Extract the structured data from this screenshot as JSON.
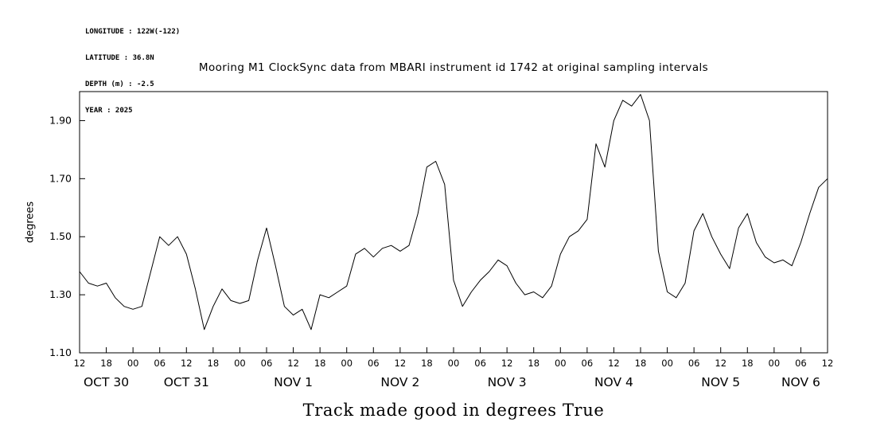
{
  "header_info": {
    "longitude": "LONGITUDE : 122W(-122)",
    "latitude": "LATITUDE : 36.8N",
    "depth": "DEPTH (m) : -2.5",
    "year": "YEAR : 2025"
  },
  "chart_data": {
    "type": "line",
    "title": "Mooring M1 ClockSync data from MBARI instrument id 1742 at original sampling intervals",
    "xlabel": "Track made good in degrees True",
    "ylabel": "degrees",
    "ylim": [
      1.1,
      2.0
    ],
    "ytick_labels": [
      "1.10",
      "1.30",
      "1.50",
      "1.70",
      "1.90"
    ],
    "x_start_label": "OCT 30 12:00",
    "x_end_label": "NOV 6 12:00",
    "x_tick_interval_hours": 6,
    "x_tick_labels": [
      "12",
      "18",
      "00",
      "06",
      "12",
      "18",
      "00",
      "06",
      "12",
      "18",
      "00",
      "06",
      "12",
      "18",
      "00",
      "06",
      "12",
      "18",
      "00",
      "06",
      "12",
      "18",
      "00",
      "06",
      "12",
      "18",
      "00",
      "06",
      "12"
    ],
    "date_labels": [
      {
        "label": "OCT 30",
        "center_hour": 6
      },
      {
        "label": "OCT 31",
        "center_hour": 24
      },
      {
        "label": "NOV 1",
        "center_hour": 48
      },
      {
        "label": "NOV 2",
        "center_hour": 72
      },
      {
        "label": "NOV 3",
        "center_hour": 96
      },
      {
        "label": "NOV 4",
        "center_hour": 120
      },
      {
        "label": "NOV 5",
        "center_hour": 144
      },
      {
        "label": "NOV 6",
        "center_hour": 162
      }
    ],
    "sample_interval_hours": 2,
    "series": [
      {
        "name": "track_made_good_deg_true",
        "values": [
          1.38,
          1.34,
          1.33,
          1.34,
          1.29,
          1.26,
          1.25,
          1.26,
          1.38,
          1.5,
          1.47,
          1.5,
          1.44,
          1.32,
          1.18,
          1.26,
          1.32,
          1.28,
          1.27,
          1.28,
          1.42,
          1.53,
          1.4,
          1.26,
          1.23,
          1.25,
          1.18,
          1.3,
          1.29,
          1.31,
          1.33,
          1.44,
          1.46,
          1.43,
          1.46,
          1.47,
          1.45,
          1.47,
          1.58,
          1.74,
          1.76,
          1.68,
          1.35,
          1.26,
          1.31,
          1.35,
          1.38,
          1.42,
          1.4,
          1.34,
          1.3,
          1.31,
          1.29,
          1.33,
          1.44,
          1.5,
          1.52,
          1.56,
          1.82,
          1.74,
          1.9,
          1.97,
          1.95,
          1.99,
          1.9,
          1.45,
          1.31,
          1.29,
          1.34,
          1.52,
          1.58,
          1.5,
          1.44,
          1.39,
          1.53,
          1.58,
          1.48,
          1.43,
          1.41,
          1.42,
          1.4,
          1.48,
          1.58,
          1.67,
          1.7
        ]
      }
    ],
    "line_color": "#000000",
    "frame_color": "#000000",
    "grid": false,
    "legend": "none"
  }
}
